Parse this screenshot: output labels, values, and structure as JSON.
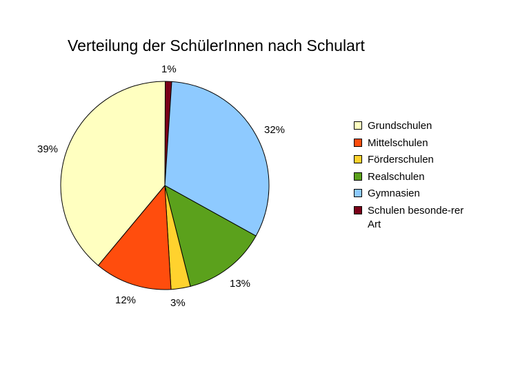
{
  "chart_data": {
    "type": "pie",
    "title": "Verteilung der SchülerInnen nach Schulart",
    "slices": [
      {
        "label": "Grundschulen",
        "value": 39,
        "display": "39%",
        "color": "#FFFFC0"
      },
      {
        "label": "Mittelschulen",
        "value": 12,
        "display": "12%",
        "color": "#FF4D0D"
      },
      {
        "label": "Förderschulen",
        "value": 3,
        "display": "3%",
        "color": "#FFD22E"
      },
      {
        "label": "Realschulen",
        "value": 13,
        "display": "13%",
        "color": "#5BA11C"
      },
      {
        "label": "Gymnasien",
        "value": 32,
        "display": "32%",
        "color": "#8ECAFF"
      },
      {
        "label": "Schulen besonde-rer Art",
        "value": 1,
        "display": "1%",
        "color": "#7A0018"
      }
    ],
    "legend_position": "right"
  }
}
